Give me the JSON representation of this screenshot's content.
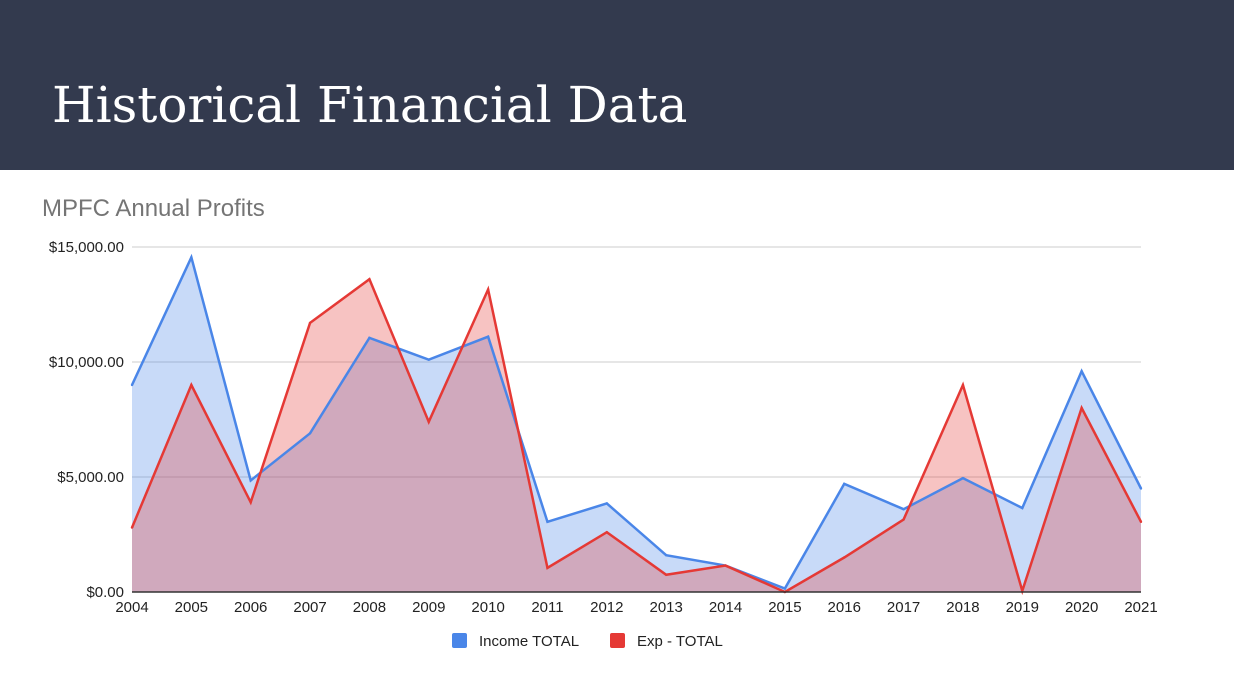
{
  "slide": {
    "title": "Historical Financial Data",
    "header_color": "#333a4e"
  },
  "chart_data": {
    "type": "area",
    "title": "MPFC Annual Profits",
    "xlabel": "",
    "ylabel": "",
    "x": [
      "2004",
      "2005",
      "2006",
      "2007",
      "2008",
      "2009",
      "2010",
      "2011",
      "2012",
      "2013",
      "2014",
      "2015",
      "2016",
      "2017",
      "2018",
      "2019",
      "2020",
      "2021"
    ],
    "ylim": [
      0,
      15000
    ],
    "y_ticks": [
      0,
      5000,
      10000,
      15000
    ],
    "y_tick_labels": [
      "$0.00",
      "$5,000.00",
      "$10,000.00",
      "$15,000.00"
    ],
    "grid": true,
    "legend_position": "bottom",
    "series": [
      {
        "name": "Income TOTAL",
        "color": "#4a86e8",
        "values": [
          9000,
          14550,
          4850,
          6900,
          11050,
          10100,
          11100,
          3050,
          3850,
          1600,
          1150,
          150,
          4700,
          3600,
          4950,
          3650,
          9600,
          4500
        ]
      },
      {
        "name": "Exp - TOTAL",
        "color": "#e53935",
        "values": [
          2800,
          9000,
          3900,
          11700,
          13600,
          7400,
          13150,
          1050,
          2600,
          750,
          1150,
          0,
          1500,
          3150,
          9000,
          50,
          8000,
          3050
        ]
      }
    ]
  }
}
